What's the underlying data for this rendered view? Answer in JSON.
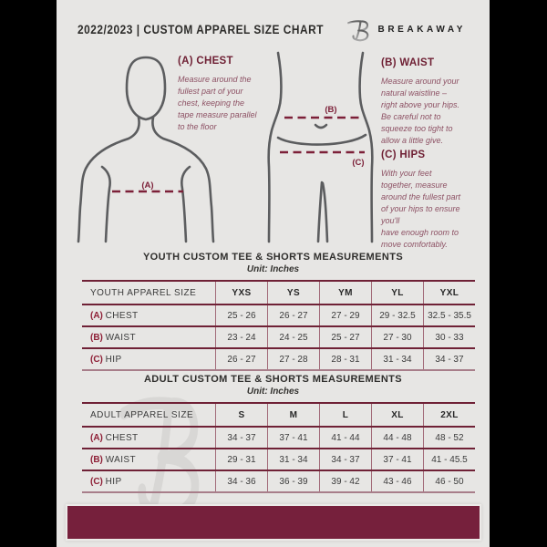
{
  "header": {
    "title": "2022/2023  |  CUSTOM APPAREL SIZE CHART",
    "brand": "BREAKAWAY"
  },
  "guide": {
    "chest": {
      "heading": "(A) CHEST",
      "body": "Measure around the\nfullest part of your\nchest, keeping the\ntape measure parallel\nto the floor"
    },
    "waist": {
      "heading": "(B) WAIST",
      "body": "Measure around your\nnatural waistline –\nright above your hips.\nBe careful not to\nsqueeze too tight to\nallow a little give."
    },
    "hips": {
      "heading": "(C) HIPS",
      "body": "With your feet\ntogether, measure\naround the fullest part\nof your hips to ensure\nyou'll\nhave enough room to\nmove comfortably."
    },
    "labels": {
      "chest": "(A)",
      "waist": "(B)",
      "hips": "(C)"
    }
  },
  "youth": {
    "title": "YOUTH CUSTOM TEE & SHORTS MEASUREMENTS",
    "unit": "Unit: Inches",
    "table": {
      "header": [
        "YOUTH APPAREL SIZE",
        "YXS",
        "YS",
        "YM",
        "YL",
        "YXL"
      ],
      "rows": [
        {
          "prefix": "(A)",
          "label": "CHEST",
          "values": [
            "25 - 26",
            "26 - 27",
            "27 - 29",
            "29 - 32.5",
            "32.5 - 35.5"
          ]
        },
        {
          "prefix": "(B)",
          "label": "WAIST",
          "values": [
            "23 - 24",
            "24 - 25",
            "25 - 27",
            "27 - 30",
            "30 - 33"
          ]
        },
        {
          "prefix": "(C)",
          "label": "HIP",
          "values": [
            "26 - 27",
            "27 - 28",
            "28 - 31",
            "31 - 34",
            "34 - 37"
          ]
        }
      ]
    }
  },
  "adult": {
    "title": "ADULT CUSTOM TEE & SHORTS MEASUREMENTS",
    "unit": "Unit: Inches",
    "table": {
      "header": [
        "ADULT APPAREL SIZE",
        "S",
        "M",
        "L",
        "XL",
        "2XL"
      ],
      "rows": [
        {
          "prefix": "(A)",
          "label": "CHEST",
          "values": [
            "34 - 37",
            "37 - 41",
            "41 - 44",
            "44 - 48",
            "48 - 52"
          ]
        },
        {
          "prefix": "(B)",
          "label": "WAIST",
          "values": [
            "29 - 31",
            "31 - 34",
            "34 - 37",
            "37 - 41",
            "41 - 45.5"
          ]
        },
        {
          "prefix": "(C)",
          "label": "HIP",
          "values": [
            "34 - 36",
            "36 - 39",
            "39 - 42",
            "43 - 46",
            "46 - 50"
          ]
        }
      ]
    }
  },
  "colors": {
    "page_bg": "#e7e6e4",
    "maroon_dark": "#6e1f33",
    "maroon_text": "#8d5164",
    "dash_line": "#7c2038",
    "figure_outline": "#5c5d5f",
    "footer_bar": "#76203c",
    "watermark": "#d8d7d5"
  }
}
